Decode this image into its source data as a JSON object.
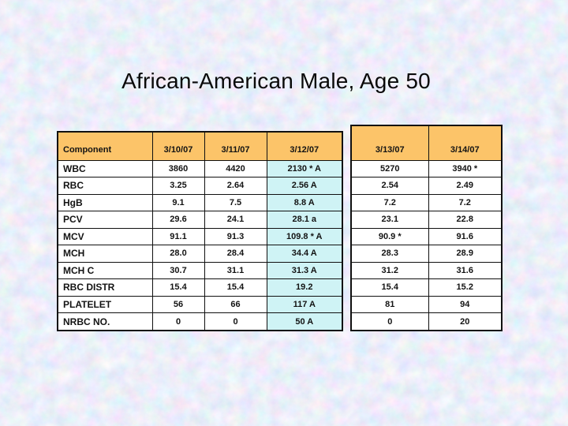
{
  "title": "African-American Male, Age 50",
  "tables": [
    {
      "name": "lab-table-left",
      "component_column": 0,
      "highlight_column": 3,
      "columns": [
        "Component",
        "3/10/07",
        "3/11/07",
        "3/12/07"
      ],
      "rows": [
        [
          "WBC",
          "3860",
          "4420",
          "2130 * A"
        ],
        [
          "RBC",
          "3.25",
          "2.64",
          "2.56 A"
        ],
        [
          "HgB",
          "9.1",
          "7.5",
          "8.8 A"
        ],
        [
          "PCV",
          "29.6",
          "24.1",
          "28.1 a"
        ],
        [
          "MCV",
          "91.1",
          "91.3",
          "109.8 * A"
        ],
        [
          "MCH",
          "28.0",
          "28.4",
          "34.4 A"
        ],
        [
          "MCH C",
          "30.7",
          "31.1",
          "31.3 A"
        ],
        [
          "RBC DISTR",
          "15.4",
          "15.4",
          "19.2"
        ],
        [
          "PLATELET",
          "56",
          "66",
          "117 A"
        ],
        [
          "NRBC NO.",
          "0",
          "0",
          "50 A"
        ]
      ]
    },
    {
      "name": "lab-table-right",
      "component_column": -1,
      "highlight_column": -1,
      "columns": [
        "3/13/07",
        "3/14/07"
      ],
      "rows": [
        [
          "5270",
          "3940 *"
        ],
        [
          "2.54",
          "2.49"
        ],
        [
          "7.2",
          "7.2"
        ],
        [
          "23.1",
          "22.8"
        ],
        [
          "90.9 *",
          "91.6"
        ],
        [
          "28.3",
          "28.9"
        ],
        [
          "31.2",
          "31.6"
        ],
        [
          "15.4",
          "15.2"
        ],
        [
          "81",
          "94"
        ],
        [
          "0",
          "20"
        ]
      ]
    }
  ],
  "colors": {
    "header_fill": "#FCC469",
    "highlight_fill": "#CFF3F5",
    "cell_fill": "#FFFFFF",
    "border": "#101010",
    "background_base": "#C6D3EE"
  }
}
